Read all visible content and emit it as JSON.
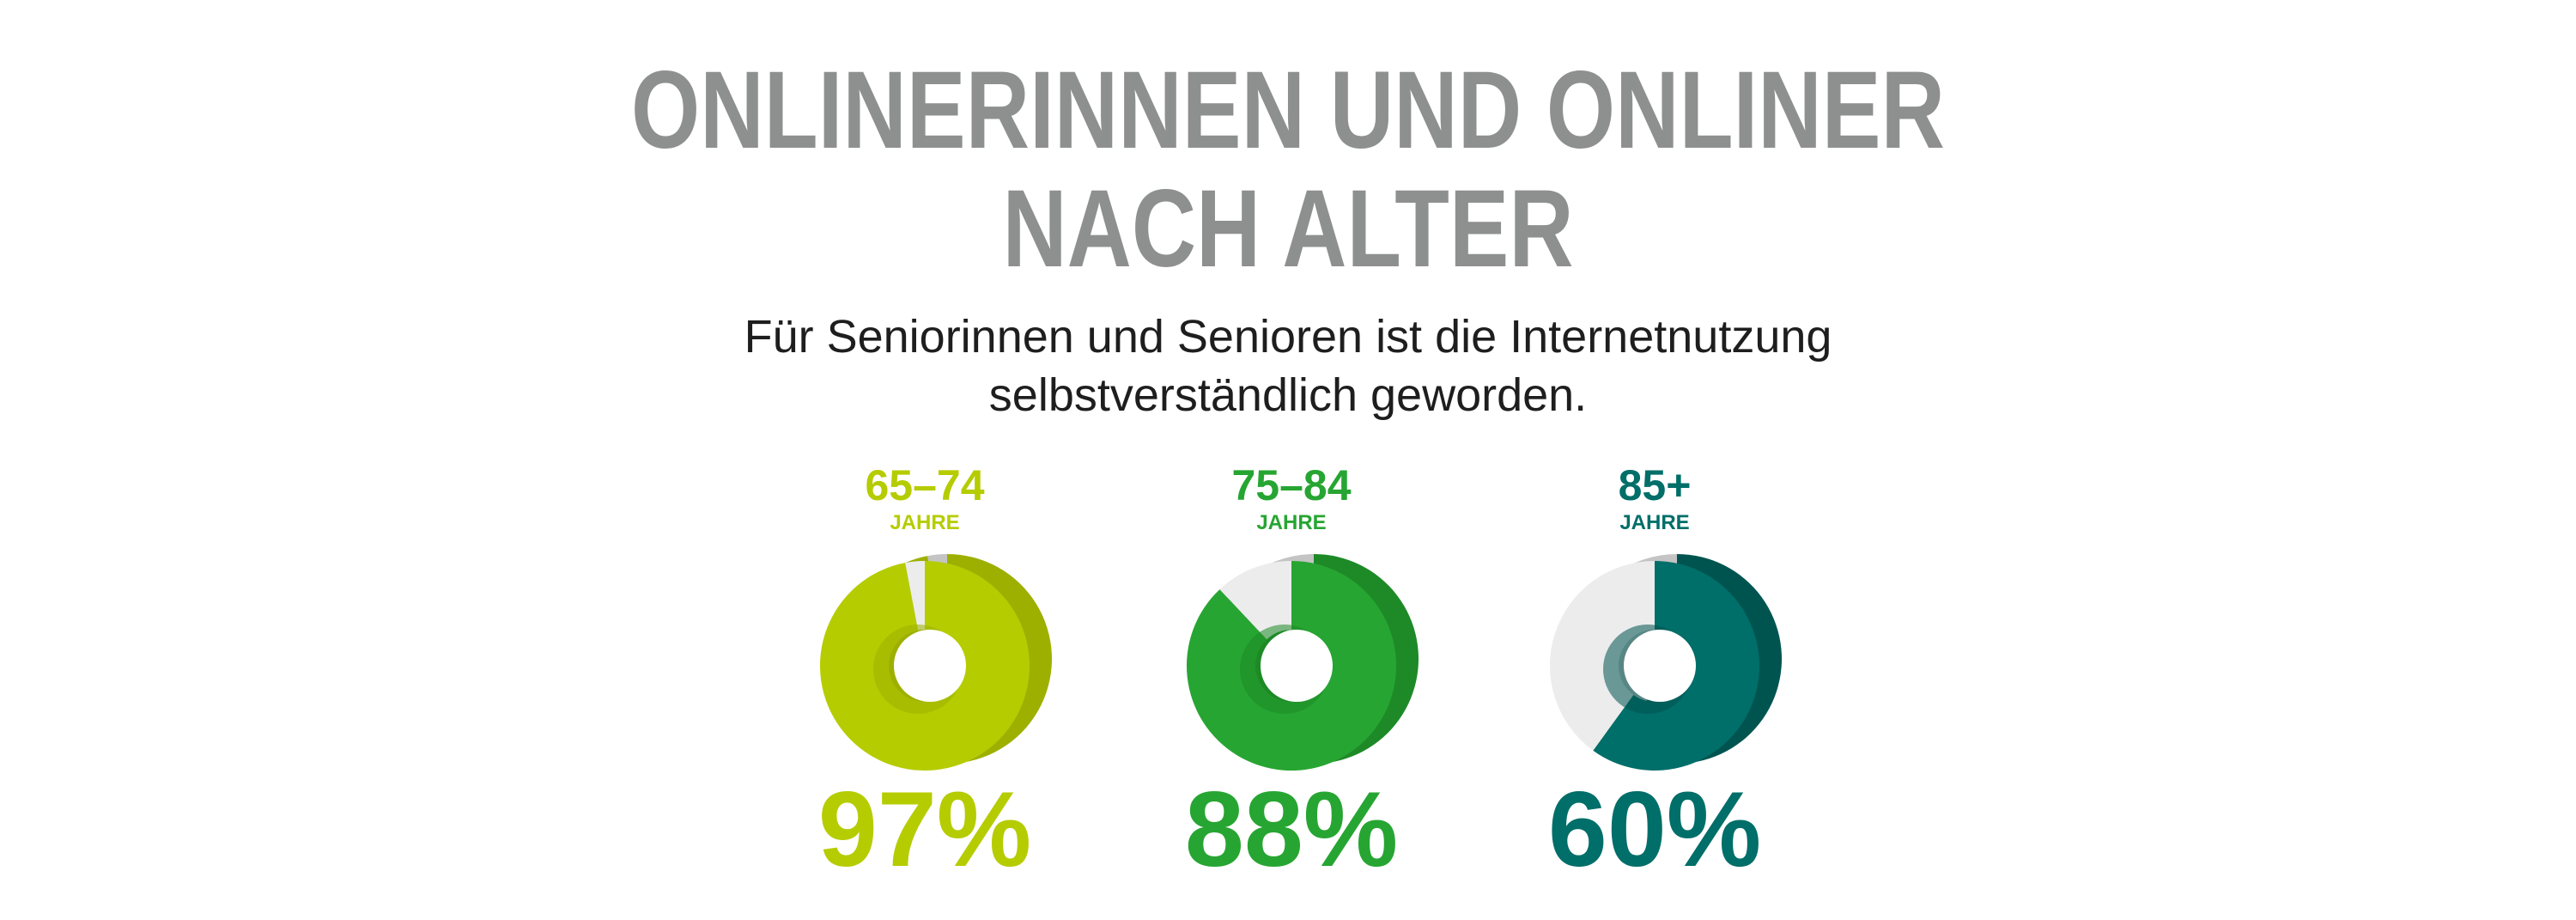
{
  "title": [
    "ONLINERINNEN UND ONLINER",
    "NACH ALTER"
  ],
  "subtitle": [
    "Für Seniorinnen und Senioren ist die Internetnutzung",
    "selbstverständlich geworden."
  ],
  "chart_data": [
    {
      "type": "donut",
      "title": "65–74",
      "subtitle": "JAHRE",
      "values": [
        97
      ],
      "value_labels": [
        "97%"
      ],
      "ylim": [
        0,
        100
      ],
      "color": "#b5cc00",
      "depth_color": "#9db000",
      "rest_color": "#ececec",
      "rest_depth_color": "#c4c4c4"
    },
    {
      "type": "donut",
      "title": "75–84",
      "subtitle": "JAHRE",
      "values": [
        88
      ],
      "value_labels": [
        "88%"
      ],
      "ylim": [
        0,
        100
      ],
      "color": "#27a532",
      "depth_color": "#1d8a27",
      "rest_color": "#ececec",
      "rest_depth_color": "#c4c4c4"
    },
    {
      "type": "donut",
      "title": "85+",
      "subtitle": "JAHRE",
      "values": [
        60
      ],
      "value_labels": [
        "60%"
      ],
      "ylim": [
        0,
        100
      ],
      "color": "#006e69",
      "depth_color": "#005450",
      "rest_color": "#ececec",
      "rest_depth_color": "#c4c4c4"
    }
  ]
}
